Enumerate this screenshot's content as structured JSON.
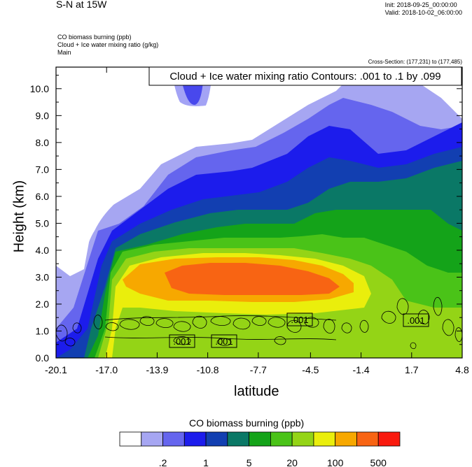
{
  "header": {
    "title": "S-N at 15W",
    "init": "Init: 2018-09-25_00:00:00",
    "valid": "Valid: 2018-10-02_06:00:00",
    "field1": "CO biomass burning   (ppb)",
    "field2": "Cloud + Ice water mixing ratio   (g/kg)",
    "field3": "Main",
    "cross_section": "Cross-Section: (177,231) to (177,485)"
  },
  "chart_data": {
    "type": "heatmap",
    "title": "S-N at 15W",
    "xlabel": "latitude",
    "ylabel": "Height (km)",
    "x_ticks": [
      "-20.1",
      "-17.0",
      "-13.9",
      "-10.8",
      "-7.7",
      "-4.5",
      "-1.4",
      "1.7",
      "4.8"
    ],
    "y_ticks": [
      "0.0",
      "1.0",
      "2.0",
      "3.0",
      "4.0",
      "5.0",
      "6.0",
      "7.0",
      "8.0",
      "9.0",
      "10.0"
    ],
    "xlim": [
      -20.1,
      4.8
    ],
    "ylim": [
      0.0,
      10.8
    ],
    "contour_banner": "Cloud + Ice water mixing ratio Contours: .001 to .1 by .099",
    "contour_labels": [
      ".001",
      ".001",
      ".001",
      ".001"
    ],
    "colorbar": {
      "title": "CO biomass burning  (ppb)",
      "tick_labels": [
        ".2",
        "1",
        "5",
        "20",
        "100",
        "500"
      ],
      "colors": [
        "#ffffff",
        "#a6a6f2",
        "#6565ee",
        "#1c1cec",
        "#123fb1",
        "#0a7866",
        "#14a319",
        "#4ac318",
        "#94d416",
        "#eaee0c",
        "#f7a800",
        "#f86413",
        "#f91a0e"
      ]
    }
  }
}
